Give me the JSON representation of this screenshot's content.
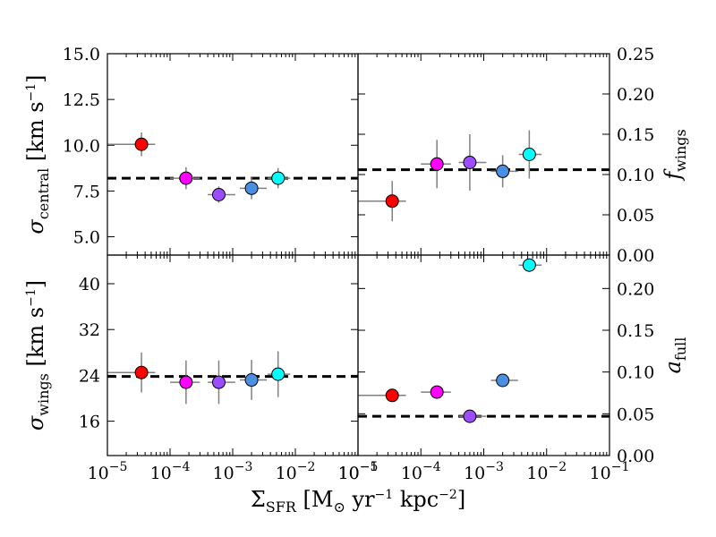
{
  "chart_data": {
    "type": "scatter",
    "x_axis": {
      "label_main": "Σ",
      "label_sub": "SFR",
      "label_rest": " [M",
      "label_odot": "⊙",
      "label_yr": " yr",
      "label_exp1": "−1",
      "label_kpc": " kpc",
      "label_exp2": "−2",
      "label_close": "]",
      "scale": "log",
      "xlim": [
        1e-05,
        0.1
      ],
      "tick_labels_left": [
        "10−5",
        "10−4",
        "10−3",
        "10−2",
        "10−1"
      ],
      "tick_labels_right": [
        "10−5",
        "10−4",
        "10−3",
        "10−2",
        "10−1"
      ]
    },
    "colors": [
      "#ff0000",
      "#ff00ff",
      "#9b4dff",
      "#4a90e2",
      "#00ffff"
    ],
    "x_values": [
      3.5e-05,
      0.00018,
      0.0006,
      0.002,
      0.0053
    ],
    "x_err_low": [
      2.5e-05,
      8e-05,
      0.0002,
      0.0007,
      0.0017
    ],
    "x_err_high": [
      2.3e-05,
      0.00012,
      0.0005,
      0.0015,
      0.003
    ],
    "panels": [
      {
        "id": "sigma_central",
        "position": "top-left",
        "ylabel_main": "σ",
        "ylabel_sub": "central",
        "ylabel_unit": "[km s",
        "ylabel_exp": "−1",
        "ylabel_close": "]",
        "ylim": [
          4.0,
          15.0
        ],
        "yticks": [
          5.0,
          7.5,
          10.0,
          12.5,
          15.0
        ],
        "ytick_labels": [
          "5.0",
          "7.5",
          "10.0",
          "12.5",
          "15.0"
        ],
        "y_values": [
          10.05,
          8.2,
          7.3,
          7.65,
          8.2
        ],
        "y_err": [
          0.65,
          0.6,
          0.45,
          0.6,
          0.55
        ],
        "reference_line": 8.2
      },
      {
        "id": "f_wings",
        "position": "top-right",
        "ylabel_main": "f",
        "ylabel_sub": "wings",
        "ylim": [
          0.0,
          0.25
        ],
        "yticks": [
          0.0,
          0.05,
          0.1,
          0.15,
          0.2,
          0.25
        ],
        "ytick_labels": [
          "0.00",
          "0.05",
          "0.10",
          "0.15",
          "0.20",
          "0.25"
        ],
        "y_values": [
          0.067,
          0.113,
          0.115,
          0.104,
          0.125
        ],
        "y_err": [
          0.025,
          0.03,
          0.035,
          0.02,
          0.03
        ],
        "reference_line": 0.106
      },
      {
        "id": "sigma_wings",
        "position": "bottom-left",
        "ylabel_main": "σ",
        "ylabel_sub": "wings",
        "ylabel_unit": "[km s",
        "ylabel_exp": "−1",
        "ylabel_close": "]",
        "ylim": [
          10.0,
          45.0
        ],
        "yticks": [
          16,
          24,
          32,
          40
        ],
        "ytick_labels": [
          "16",
          "24",
          "32",
          "40"
        ],
        "y_values": [
          24.5,
          22.8,
          22.8,
          23.2,
          24.2
        ],
        "y_err": [
          3.5,
          3.8,
          3.8,
          3.5,
          4.0
        ],
        "reference_line": 23.8
      },
      {
        "id": "a_full",
        "position": "bottom-right",
        "ylabel_main": "a",
        "ylabel_sub": "full",
        "ylim": [
          0.0,
          0.24
        ],
        "yticks": [
          0.0,
          0.05,
          0.1,
          0.15,
          0.2
        ],
        "ytick_labels": [
          "0.00",
          "0.05",
          "0.10",
          "0.15",
          "0.20"
        ],
        "y_values": [
          0.072,
          0.076,
          0.047,
          0.09,
          0.228
        ],
        "y_err": [
          0.0,
          0.0,
          0.0,
          0.0,
          0.008
        ],
        "reference_line": 0.047
      }
    ]
  }
}
